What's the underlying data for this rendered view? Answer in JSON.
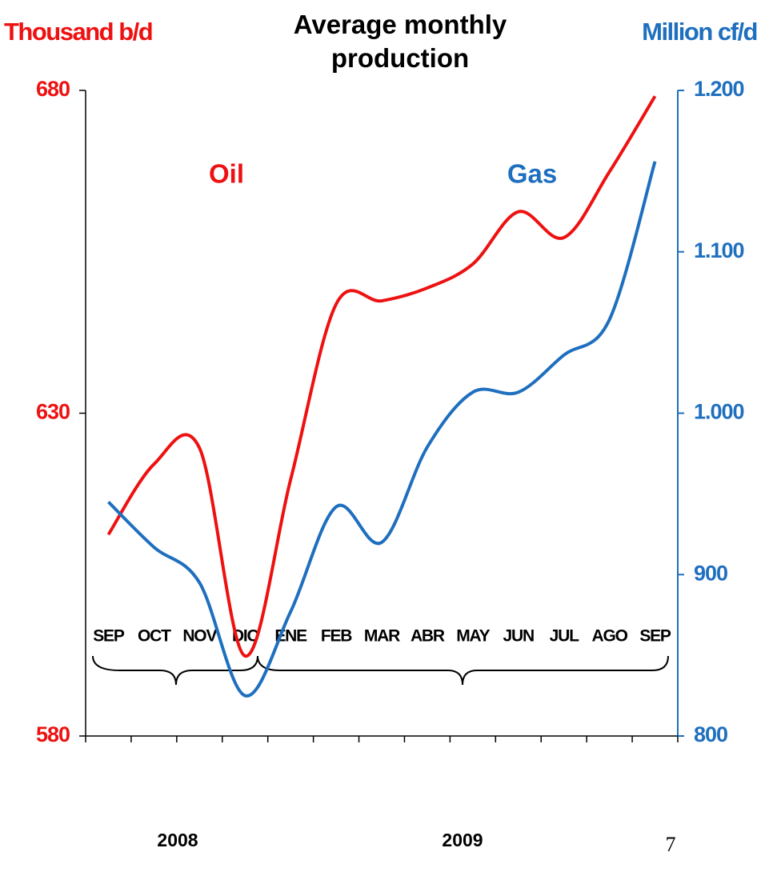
{
  "chart_data": {
    "type": "line",
    "title": "Average monthly production",
    "y_axis_label": "Thousand b/d",
    "y2_axis_label": "Million cf/d",
    "categories": [
      "SEP",
      "OCT",
      "NOV",
      "DIC",
      "ENE",
      "FEB",
      "MAR",
      "ABR",
      "MAY",
      "JUN",
      "JUL",
      "AGO",
      "SEP"
    ],
    "series": [
      {
        "name": "Oil",
        "color": "#ee1111",
        "values": [
          611.2,
          622.1,
          624.6,
          592.4,
          619.7,
          646.9,
          647.4,
          649.4,
          653.1,
          661.2,
          657.2,
          667.4,
          679.1
        ]
      },
      {
        "name": "Gas",
        "color": "#1f6fbf",
        "axis": "y2",
        "values": [
          945,
          917,
          895,
          825,
          877,
          942,
          920,
          979,
          1013,
          1013,
          1036,
          1058,
          1156
        ]
      }
    ],
    "ylim": [
      580,
      680
    ],
    "yticks": [
      580,
      630,
      680
    ],
    "y2lim": [
      800,
      1200
    ],
    "y2ticks": [
      800,
      900,
      {
        "value": 1000,
        "label": "1.000"
      },
      {
        "value": 1100,
        "label": "1.100"
      },
      {
        "value": 1200,
        "label": "1.200"
      }
    ],
    "year_labels": [
      "2008",
      "2009"
    ],
    "page_number": "7"
  }
}
